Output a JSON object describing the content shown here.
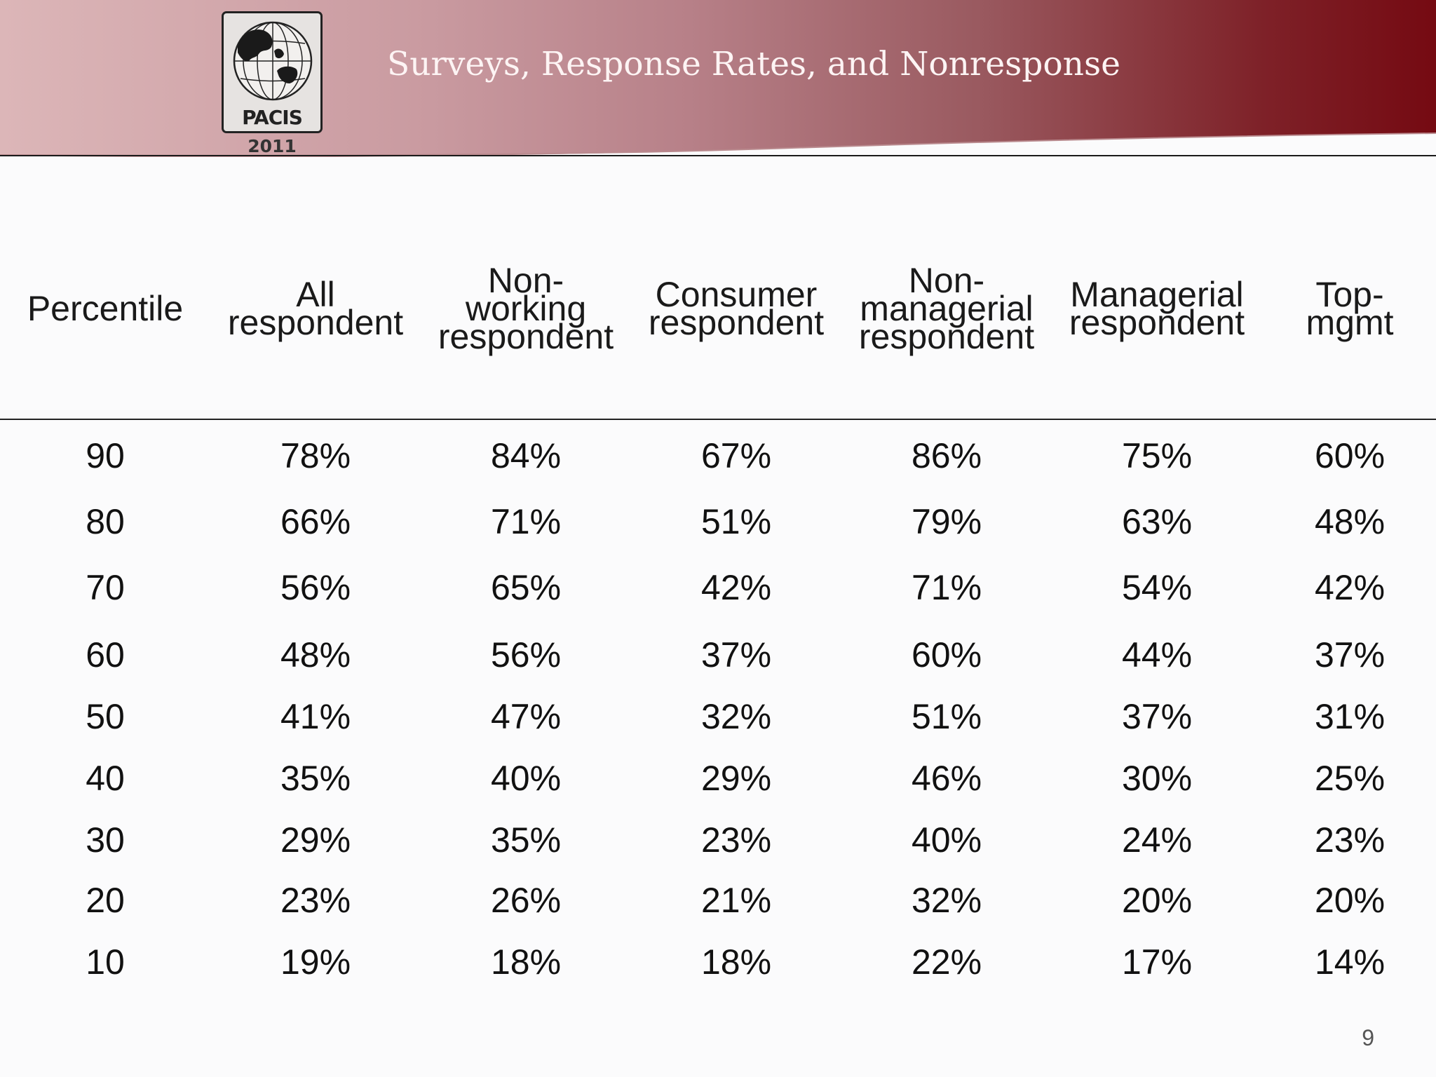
{
  "header": {
    "title": "Surveys, Response Rates, and Nonresponse",
    "logo_label": "PACIS",
    "logo_year": "2011"
  },
  "table": {
    "columns": [
      "Percentile",
      "All\nrespondent",
      "Non-\nworking\nrespondent",
      "Consumer\nrespondent",
      "Non-\nmanagerial\nrespondent",
      "Managerial\nrespondent",
      "Top-\nmgmt"
    ],
    "rows": [
      [
        "90",
        "78%",
        "84%",
        "67%",
        "86%",
        "75%",
        "60%"
      ],
      [
        "80",
        "66%",
        "71%",
        "51%",
        "79%",
        "63%",
        "48%"
      ],
      [
        "70",
        "56%",
        "65%",
        "42%",
        "71%",
        "54%",
        "42%"
      ],
      [
        "60",
        "48%",
        "56%",
        "37%",
        "60%",
        "44%",
        "37%"
      ],
      [
        "50",
        "41%",
        "47%",
        "32%",
        "51%",
        "37%",
        "31%"
      ],
      [
        "40",
        "35%",
        "40%",
        "29%",
        "46%",
        "30%",
        "25%"
      ],
      [
        "30",
        "29%",
        "35%",
        "23%",
        "40%",
        "24%",
        "23%"
      ],
      [
        "20",
        "23%",
        "26%",
        "21%",
        "32%",
        "20%",
        "20%"
      ],
      [
        "10",
        "19%",
        "18%",
        "18%",
        "22%",
        "17%",
        "14%"
      ]
    ]
  },
  "footer": {
    "page_number": "9"
  }
}
